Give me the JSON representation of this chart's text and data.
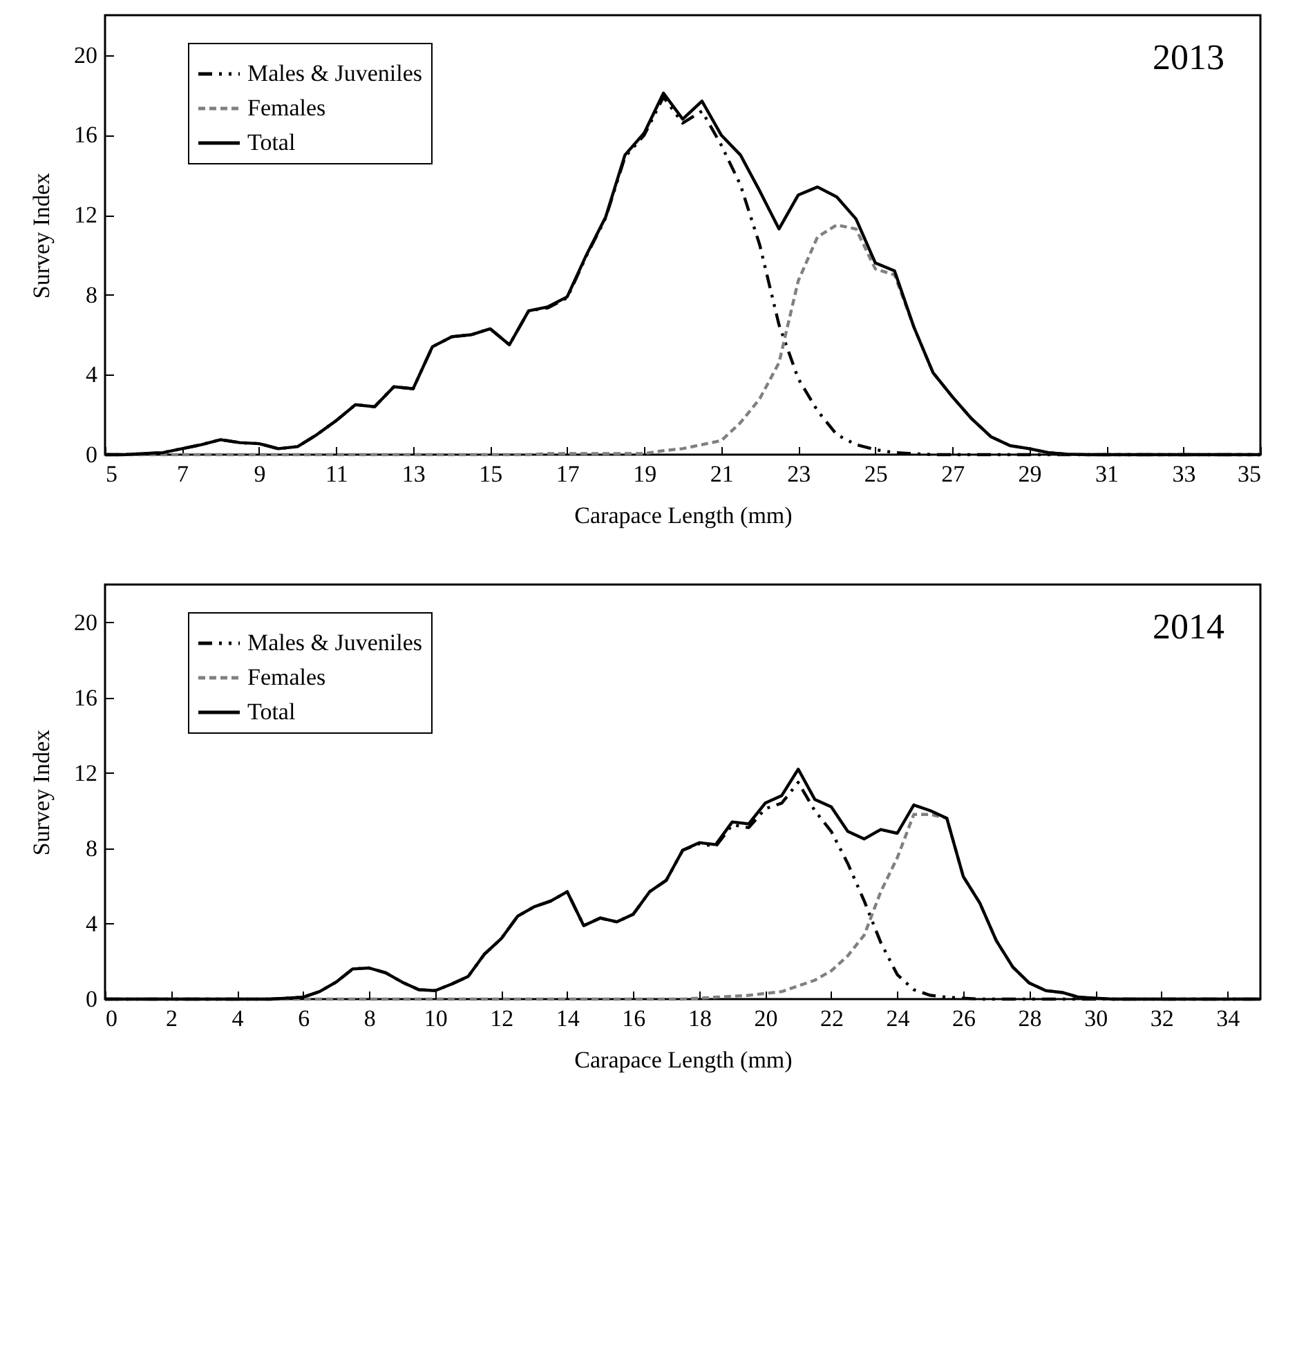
{
  "chart_data": [
    {
      "type": "line",
      "xlabel": "Carapace Length (mm)",
      "ylabel": "Survey Index",
      "annotations": [
        "2013"
      ],
      "legend": "top left",
      "xlim": [
        5,
        35
      ],
      "xticks": [
        5,
        7,
        9,
        11,
        13,
        15,
        17,
        19,
        21,
        23,
        25,
        27,
        29,
        31,
        33,
        35
      ],
      "ylim": [
        0,
        22
      ],
      "yticks": [
        0,
        4,
        8,
        12,
        16,
        20
      ],
      "x": [
        5,
        5.5,
        6,
        6.5,
        7,
        7.5,
        8,
        8.5,
        9,
        9.5,
        10,
        10.5,
        11,
        11.5,
        12,
        12.5,
        13,
        13.5,
        14,
        14.5,
        15,
        15.5,
        16,
        16.5,
        17,
        17.5,
        18,
        18.5,
        19,
        19.5,
        20,
        20.5,
        21,
        21.5,
        22,
        22.5,
        23,
        23.5,
        24,
        24.5,
        25,
        25.5,
        26,
        26.5,
        27,
        27.5,
        28,
        28.5,
        29,
        29.5,
        30,
        30.5,
        31,
        31.5,
        32,
        32.5,
        33,
        33.5,
        34,
        34.5,
        35
      ],
      "series": [
        {
          "name": "Males & Juveniles",
          "color": "#000000",
          "line_style": "dashed",
          "values": [
            0,
            0,
            0.05,
            0.1,
            0.3,
            0.5,
            0.75,
            0.6,
            0.55,
            0.3,
            0.4,
            1.0,
            1.7,
            2.5,
            2.4,
            3.4,
            3.3,
            5.4,
            5.9,
            6.0,
            6.3,
            5.5,
            7.2,
            7.35,
            7.85,
            9.95,
            11.85,
            14.9,
            16.0,
            17.9,
            16.6,
            17.2,
            15.5,
            13.5,
            10.5,
            6.5,
            3.8,
            2.2,
            1.0,
            0.5,
            0.25,
            0.1,
            0.05,
            0,
            0,
            0,
            0,
            0,
            0,
            0,
            0,
            0,
            0,
            0,
            0,
            0,
            0,
            0,
            0,
            0,
            0
          ]
        },
        {
          "name": "Females",
          "color": "#808080",
          "line_style": "dashed",
          "values": [
            0,
            0,
            0,
            0,
            0,
            0,
            0,
            0,
            0,
            0,
            0,
            0,
            0,
            0,
            0,
            0,
            0,
            0,
            0,
            0,
            0,
            0,
            0,
            0.05,
            0.05,
            0.05,
            0.05,
            0.05,
            0.05,
            0.2,
            0.3,
            0.5,
            0.7,
            1.6,
            2.8,
            4.6,
            8.7,
            10.9,
            11.5,
            11.3,
            9.3,
            9.0,
            6.4,
            4.1,
            2.9,
            1.8,
            0.9,
            0.45,
            0.3,
            0.1,
            0.02,
            0,
            0,
            0,
            0,
            0,
            0,
            0,
            0,
            0,
            0
          ]
        },
        {
          "name": "Total",
          "color": "#000000",
          "line_style": "solid",
          "values": [
            0,
            0,
            0.05,
            0.1,
            0.3,
            0.5,
            0.75,
            0.6,
            0.55,
            0.3,
            0.4,
            1.0,
            1.7,
            2.5,
            2.4,
            3.4,
            3.3,
            5.4,
            5.9,
            6.0,
            6.3,
            5.5,
            7.2,
            7.4,
            7.9,
            10.0,
            11.9,
            15.0,
            16.1,
            18.1,
            16.8,
            17.7,
            16.0,
            15.0,
            13.2,
            11.3,
            13.0,
            13.4,
            12.9,
            11.8,
            9.6,
            9.2,
            6.4,
            4.1,
            2.9,
            1.8,
            0.9,
            0.45,
            0.3,
            0.1,
            0.02,
            0,
            0,
            0,
            0,
            0,
            0,
            0,
            0,
            0,
            0
          ]
        }
      ]
    },
    {
      "type": "line",
      "xlabel": "Carapace Length (mm)",
      "ylabel": "Survey Index",
      "annotations": [
        "2014"
      ],
      "legend": "top left",
      "xlim": [
        0,
        35
      ],
      "xticks": [
        0,
        2,
        4,
        6,
        8,
        10,
        12,
        14,
        16,
        18,
        20,
        22,
        24,
        26,
        28,
        30,
        32,
        34
      ],
      "ylim": [
        0,
        22
      ],
      "yticks": [
        0,
        4,
        8,
        12,
        16,
        20
      ],
      "x": [
        0,
        0.5,
        1,
        1.5,
        2,
        2.5,
        3,
        3.5,
        4,
        4.5,
        5,
        5.5,
        6,
        6.5,
        7,
        7.5,
        8,
        8.5,
        9,
        9.5,
        10,
        10.5,
        11,
        11.5,
        12,
        12.5,
        13,
        13.5,
        14,
        14.5,
        15,
        15.5,
        16,
        16.5,
        17,
        17.5,
        18,
        18.5,
        19,
        19.5,
        20,
        20.5,
        21,
        21.5,
        22,
        22.5,
        23,
        23.5,
        24,
        24.5,
        25,
        25.5,
        26,
        26.5,
        27,
        27.5,
        28,
        28.5,
        29,
        29.5,
        30,
        30.5,
        31,
        31.5,
        32,
        32.5,
        33,
        33.5,
        34,
        34.5,
        35
      ],
      "series": [
        {
          "name": "Males & Juveniles",
          "color": "#000000",
          "line_style": "dashed",
          "values": [
            0,
            0,
            0,
            0,
            0,
            0,
            0,
            0,
            0,
            0,
            0,
            0.05,
            0.1,
            0.4,
            0.9,
            1.6,
            1.65,
            1.4,
            0.9,
            0.5,
            0.45,
            0.8,
            1.2,
            2.4,
            3.2,
            4.4,
            4.9,
            5.2,
            5.7,
            3.9,
            4.3,
            4.1,
            4.5,
            5.7,
            6.3,
            7.9,
            8.25,
            8.1,
            9.25,
            9.1,
            10.1,
            10.4,
            11.5,
            10.0,
            8.9,
            7.2,
            5.2,
            3.0,
            1.3,
            0.5,
            0.2,
            0.1,
            0.05,
            0,
            0,
            0,
            0,
            0,
            0,
            0,
            0,
            0,
            0,
            0,
            0,
            0,
            0,
            0,
            0,
            0,
            0
          ]
        },
        {
          "name": "Females",
          "color": "#808080",
          "line_style": "dashed",
          "values": [
            0,
            0,
            0,
            0,
            0,
            0,
            0,
            0,
            0,
            0,
            0,
            0,
            0,
            0,
            0,
            0,
            0,
            0,
            0,
            0,
            0,
            0,
            0,
            0,
            0,
            0,
            0,
            0,
            0,
            0,
            0,
            0,
            0,
            0,
            0,
            0,
            0.05,
            0.1,
            0.15,
            0.2,
            0.3,
            0.4,
            0.7,
            1.0,
            1.5,
            2.3,
            3.4,
            5.7,
            7.5,
            9.8,
            9.8,
            9.6,
            6.5,
            5.1,
            3.1,
            1.7,
            0.85,
            0.45,
            0.35,
            0.1,
            0.05,
            0,
            0,
            0,
            0,
            0,
            0,
            0,
            0,
            0,
            0
          ]
        },
        {
          "name": "Total",
          "color": "#000000",
          "line_style": "solid",
          "values": [
            0,
            0,
            0,
            0,
            0,
            0,
            0,
            0,
            0,
            0,
            0,
            0.05,
            0.1,
            0.4,
            0.9,
            1.6,
            1.65,
            1.4,
            0.9,
            0.5,
            0.45,
            0.8,
            1.2,
            2.4,
            3.2,
            4.4,
            4.9,
            5.2,
            5.7,
            3.9,
            4.3,
            4.1,
            4.5,
            5.7,
            6.3,
            7.9,
            8.3,
            8.2,
            9.4,
            9.3,
            10.4,
            10.8,
            12.2,
            10.6,
            10.2,
            8.9,
            8.5,
            9.0,
            8.8,
            10.3,
            10.0,
            9.6,
            6.5,
            5.1,
            3.1,
            1.7,
            0.85,
            0.45,
            0.35,
            0.1,
            0.05,
            0,
            0,
            0,
            0,
            0,
            0,
            0,
            0,
            0,
            0
          ]
        }
      ]
    }
  ]
}
